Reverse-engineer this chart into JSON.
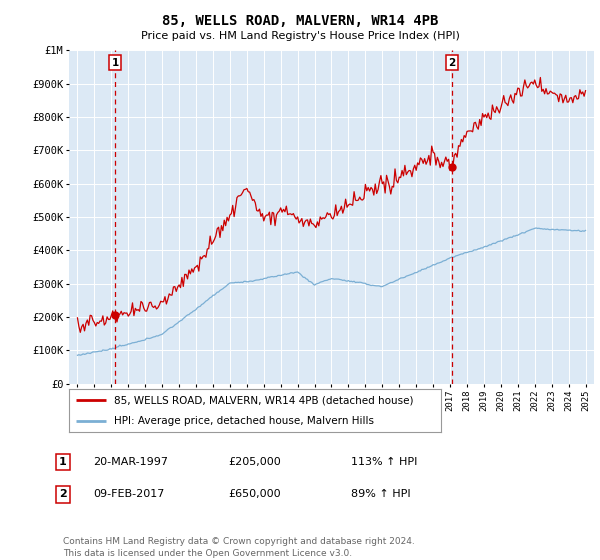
{
  "title": "85, WELLS ROAD, MALVERN, WR14 4PB",
  "subtitle": "Price paid vs. HM Land Registry's House Price Index (HPI)",
  "bg_color": "#dce9f5",
  "red_color": "#cc0000",
  "blue_color": "#7bafd4",
  "marker_color": "#cc0000",
  "grid_color": "#ffffff",
  "sale1_year": 1997.22,
  "sale1_price": 205000,
  "sale1_label": "1",
  "sale2_year": 2017.1,
  "sale2_price": 650000,
  "sale2_label": "2",
  "ylim_min": 0,
  "ylim_max": 1000000,
  "xlim_min": 1994.5,
  "xlim_max": 2025.5,
  "legend_line1": "85, WELLS ROAD, MALVERN, WR14 4PB (detached house)",
  "legend_line2": "HPI: Average price, detached house, Malvern Hills",
  "table_row1": [
    "1",
    "20-MAR-1997",
    "£205,000",
    "113% ↑ HPI"
  ],
  "table_row2": [
    "2",
    "09-FEB-2017",
    "£650,000",
    "89% ↑ HPI"
  ],
  "footnote": "Contains HM Land Registry data © Crown copyright and database right 2024.\nThis data is licensed under the Open Government Licence v3.0.",
  "ytick_labels": [
    "£0",
    "£100K",
    "£200K",
    "£300K",
    "£400K",
    "£500K",
    "£600K",
    "£700K",
    "£800K",
    "£900K",
    "£1M"
  ],
  "ytick_values": [
    0,
    100000,
    200000,
    300000,
    400000,
    500000,
    600000,
    700000,
    800000,
    900000,
    1000000
  ],
  "xtick_start": 1995,
  "xtick_end": 2025
}
